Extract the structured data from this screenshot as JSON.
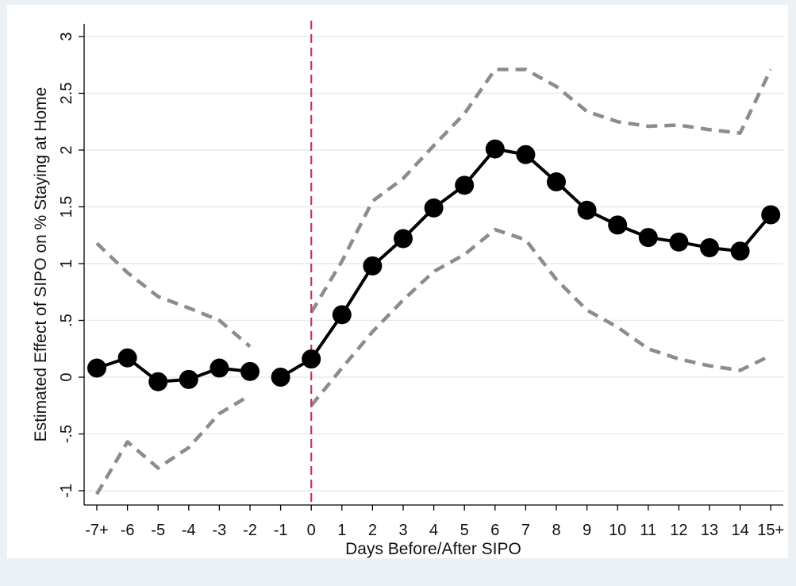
{
  "chart_data": {
    "type": "line",
    "xlabel": "Days Before/After SIPO",
    "ylabel": "Estimated Effect of SIPO on % Staying at Home",
    "categories": [
      "-7+",
      "-6",
      "-5",
      "-4",
      "-3",
      "-2",
      "-1",
      "0",
      "1",
      "2",
      "3",
      "4",
      "5",
      "6",
      "7",
      "8",
      "9",
      "10",
      "11",
      "12",
      "13",
      "14",
      "15+"
    ],
    "y_ticks": [
      {
        "value": -1,
        "label": "-1"
      },
      {
        "value": -0.5,
        "label": "-.5"
      },
      {
        "value": 0,
        "label": "0"
      },
      {
        "value": 0.5,
        "label": ".5"
      },
      {
        "value": 1,
        "label": "1"
      },
      {
        "value": 1.5,
        "label": "1.5"
      },
      {
        "value": 2,
        "label": "2"
      },
      {
        "value": 2.5,
        "label": "2.5"
      },
      {
        "value": 3,
        "label": "3"
      }
    ],
    "ylim": [
      -1.05,
      3.05
    ],
    "grid": true,
    "reference_line": {
      "x": "0",
      "style": "dashed",
      "color": "#cc3366"
    },
    "series": [
      {
        "role": "estimate",
        "color": "#000000",
        "style": "solid-with-markers",
        "values": [
          0.08,
          0.17,
          -0.04,
          -0.02,
          0.08,
          0.05,
          0.0,
          0.16,
          0.55,
          0.98,
          1.22,
          1.49,
          1.69,
          2.01,
          1.96,
          1.72,
          1.47,
          1.34,
          1.23,
          1.19,
          1.14,
          1.11,
          1.43
        ]
      },
      {
        "role": "upper-ci",
        "color": "#8c8c8c",
        "style": "dashed",
        "values": [
          1.18,
          0.92,
          0.71,
          0.61,
          0.5,
          0.27,
          null,
          0.57,
          1.02,
          1.55,
          1.75,
          2.04,
          2.32,
          2.71,
          2.71,
          2.56,
          2.34,
          2.25,
          2.21,
          2.22,
          2.18,
          2.15,
          2.71
        ]
      },
      {
        "role": "lower-ci",
        "color": "#8c8c8c",
        "style": "dashed",
        "values": [
          -1.03,
          -0.57,
          -0.8,
          -0.62,
          -0.32,
          -0.16,
          null,
          -0.25,
          0.08,
          0.4,
          0.68,
          0.93,
          1.08,
          1.3,
          1.21,
          0.86,
          0.59,
          0.44,
          0.25,
          0.16,
          0.1,
          0.06,
          0.19
        ]
      }
    ]
  }
}
